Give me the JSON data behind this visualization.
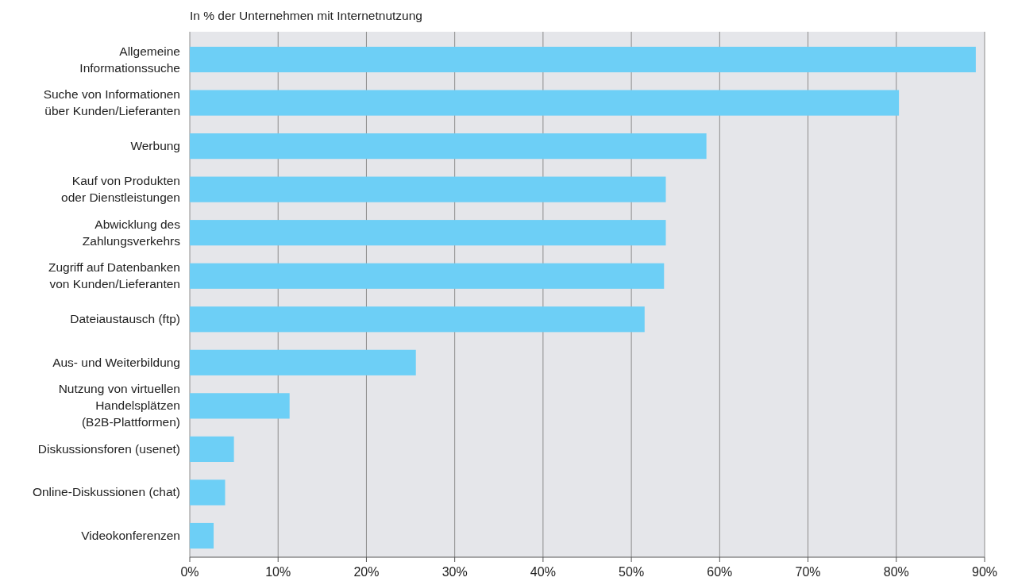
{
  "chart_data": {
    "type": "bar",
    "orientation": "horizontal",
    "title": "In % der Unternehmen mit Internetnutzung",
    "categories": [
      "Allgemeine\nInformationssuche",
      "Suche von Informationen\nüber Kunden/Lieferanten",
      "Werbung",
      "Kauf von Produkten\noder Dienstleistungen",
      "Abwicklung des\nZahlungsverkehrs",
      "Zugriff auf Datenbanken\nvon Kunden/Lieferanten",
      "Dateiaustausch (ftp)",
      "Aus- und Weiterbildung",
      "Nutzung von virtuellen\nHandelsplätzen\n(B2B-Plattformen)",
      "Diskussionsforen (usenet)",
      "Online-Diskussionen (chat)",
      "Videokonferenzen"
    ],
    "values": [
      89,
      80.3,
      58.5,
      53.9,
      53.9,
      53.7,
      51.5,
      25.6,
      11.3,
      5,
      4,
      2.7
    ],
    "color": "#6dcff6",
    "xlim": [
      0,
      90
    ],
    "xticks": [
      {
        "value": 0,
        "label": "0%"
      },
      {
        "value": 10,
        "label": "10%"
      },
      {
        "value": 20,
        "label": "20%"
      },
      {
        "value": 30,
        "label": "30%"
      },
      {
        "value": 40,
        "label": "40%"
      },
      {
        "value": 50,
        "label": "50%"
      },
      {
        "value": 60,
        "label": "60%"
      },
      {
        "value": 70,
        "label": "70%"
      },
      {
        "value": 80,
        "label": "80%"
      },
      {
        "value": 90,
        "label": "90%"
      }
    ],
    "grid": "x"
  }
}
